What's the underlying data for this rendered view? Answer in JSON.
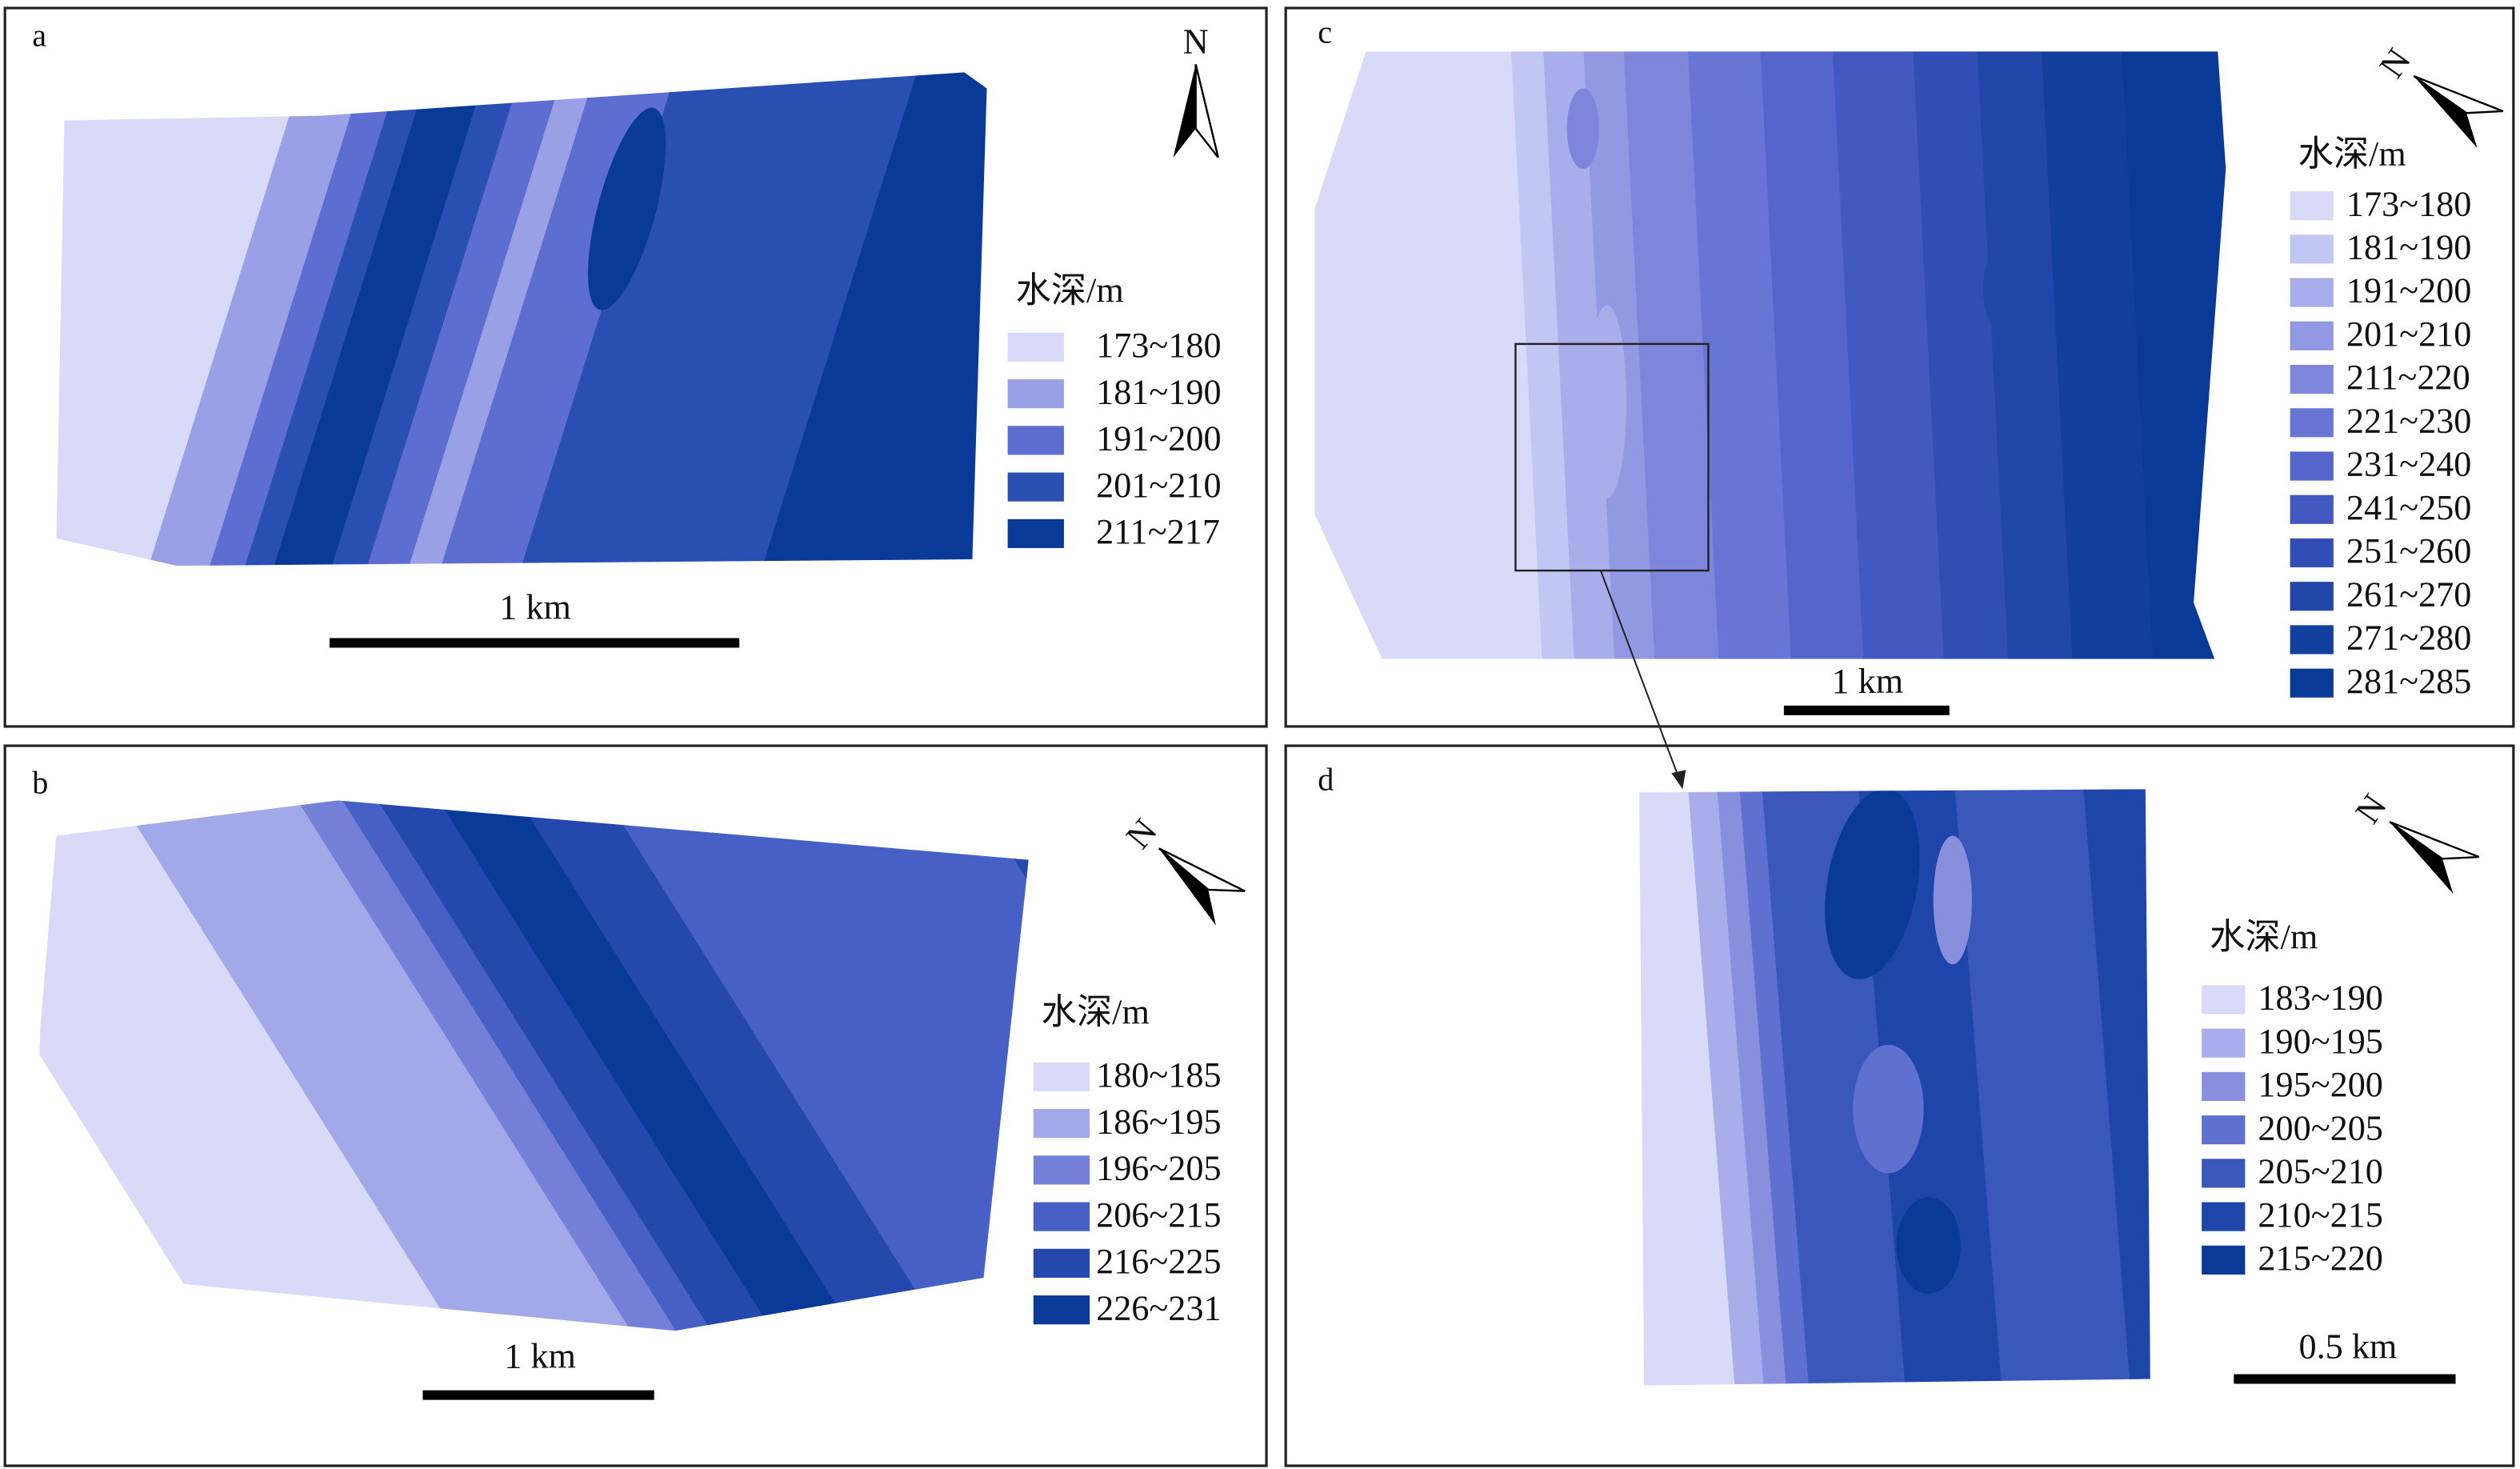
{
  "panels": [
    {
      "label": "a",
      "north": "N",
      "legend_title": "水深/m",
      "scale": "1 km",
      "legend": [
        {
          "label": "173~180",
          "color": "#d8daf8"
        },
        {
          "label": "181~190",
          "color": "#9aa0e6"
        },
        {
          "label": "191~200",
          "color": "#5d6dd0"
        },
        {
          "label": "201~210",
          "color": "#2a4fb2"
        },
        {
          "label": "211~217",
          "color": "#0a3a98"
        }
      ]
    },
    {
      "label": "b",
      "north": "N",
      "legend_title": "水深/m",
      "scale": "1 km",
      "legend": [
        {
          "label": "180~185",
          "color": "#d8daf8"
        },
        {
          "label": "186~195",
          "color": "#a3a8e8"
        },
        {
          "label": "196~205",
          "color": "#7480d8"
        },
        {
          "label": "206~215",
          "color": "#4660c6"
        },
        {
          "label": "216~225",
          "color": "#2448ae"
        },
        {
          "label": "226~231",
          "color": "#0a3a98"
        }
      ]
    },
    {
      "label": "c",
      "north": "N",
      "legend_title": "水深/m",
      "scale": "1 km",
      "legend": [
        {
          "label": "173~180",
          "color": "#d8daf8"
        },
        {
          "label": "181~190",
          "color": "#c2c6f2"
        },
        {
          "label": "191~200",
          "color": "#a9aeea"
        },
        {
          "label": "201~210",
          "color": "#9299e2"
        },
        {
          "label": "211~220",
          "color": "#7d86db"
        },
        {
          "label": "221~230",
          "color": "#6875d4"
        },
        {
          "label": "231~240",
          "color": "#5565cc"
        },
        {
          "label": "241~250",
          "color": "#4259c2"
        },
        {
          "label": "251~260",
          "color": "#314eb6"
        },
        {
          "label": "261~270",
          "color": "#2145a8"
        },
        {
          "label": "271~280",
          "color": "#123e9e"
        },
        {
          "label": "281~285",
          "color": "#0a3a98"
        }
      ]
    },
    {
      "label": "d",
      "north": "N",
      "legend_title": "水深/m",
      "scale": "0.5 km",
      "legend": [
        {
          "label": "183~190",
          "color": "#d8daf8"
        },
        {
          "label": "190~195",
          "color": "#a9aeea"
        },
        {
          "label": "195~200",
          "color": "#8890de"
        },
        {
          "label": "200~205",
          "color": "#6070d0"
        },
        {
          "label": "205~210",
          "color": "#3a58bc"
        },
        {
          "label": "210~215",
          "color": "#1e46aa"
        },
        {
          "label": "215~220",
          "color": "#0a3a98"
        }
      ]
    }
  ]
}
